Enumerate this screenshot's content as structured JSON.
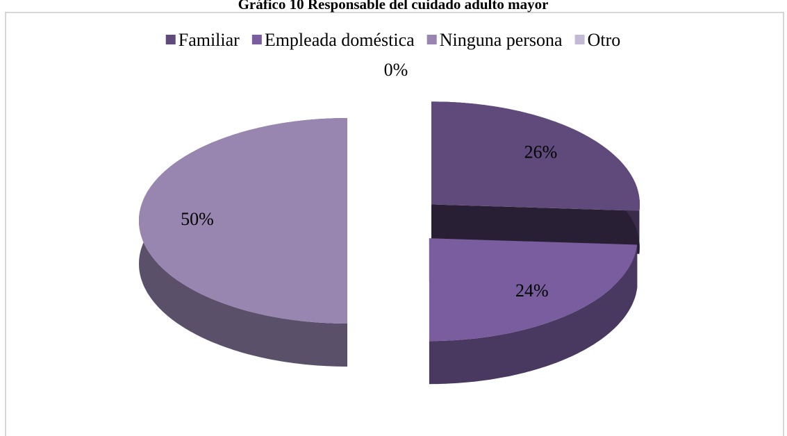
{
  "chart_data": {
    "type": "pie",
    "title": "Gráfico 10 Responsable del cuidado adulto mayor",
    "categories": [
      "Familiar",
      "Empleada doméstica",
      "Ninguna persona",
      "Otro"
    ],
    "values": [
      26,
      24,
      50,
      0
    ],
    "value_labels": [
      "26%",
      "24%",
      "50%",
      "0%"
    ],
    "colors": [
      "#604a7b",
      "#7a5d9e",
      "#9885b0",
      "#c3b9d5"
    ]
  }
}
